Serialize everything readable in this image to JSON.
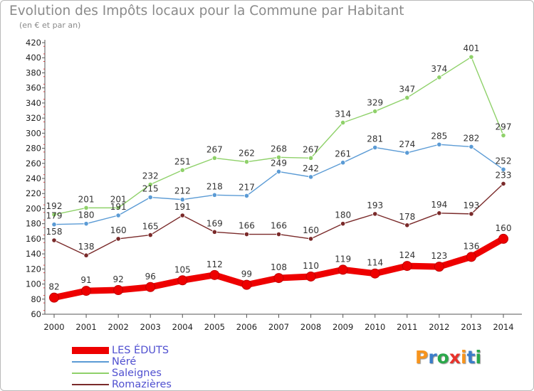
{
  "header": {
    "title": "Evolution des Impôts locaux pour la Commune par Habitant",
    "subtitle": "(en € et par an)"
  },
  "logo": {
    "text": "Proxiti",
    "colors": [
      "#f7941d",
      "#3a7dc9",
      "#2aa84a",
      "#e8322b",
      "#f7941d",
      "#3a7dc9",
      "#2aa84a"
    ]
  },
  "chart_data": {
    "type": "line",
    "title": "Evolution des Impôts locaux pour la Commune par Habitant",
    "subtitle": "(en € et par an)",
    "xlabel": "",
    "ylabel": "",
    "ylim": [
      60,
      420
    ],
    "yticks": [
      60,
      80,
      100,
      120,
      140,
      160,
      180,
      200,
      220,
      240,
      260,
      280,
      300,
      320,
      340,
      360,
      380,
      400,
      420
    ],
    "grid": false,
    "legend_position": "bottom-left",
    "categories": [
      "2000",
      "2001",
      "2002",
      "2003",
      "2004",
      "2005",
      "2006",
      "2007",
      "2008",
      "2009",
      "2010",
      "2011",
      "2012",
      "2013",
      "2014"
    ],
    "series": [
      {
        "name": "Saleignes",
        "color": "#8fd16a",
        "values": [
          192,
          201,
          201,
          232,
          251,
          267,
          262,
          268,
          267,
          314,
          329,
          347,
          374,
          401,
          297
        ]
      },
      {
        "name": "Néré",
        "color": "#5b9bd5",
        "values": [
          179,
          180,
          191,
          215,
          212,
          218,
          217,
          249,
          242,
          261,
          281,
          274,
          285,
          282,
          252
        ]
      },
      {
        "name": "Romazières",
        "color": "#7a2a2a",
        "values": [
          158,
          138,
          160,
          165,
          191,
          169,
          166,
          166,
          160,
          180,
          193,
          178,
          194,
          193,
          233
        ]
      },
      {
        "name": "LES ÉDUTS",
        "color": "#ee0000",
        "values": [
          82,
          91,
          92,
          96,
          105,
          112,
          99,
          108,
          110,
          119,
          114,
          124,
          123,
          136,
          160
        ]
      }
    ],
    "legend_order": [
      "LES ÉDUTS",
      "Néré",
      "Saleignes",
      "Romazières"
    ]
  }
}
